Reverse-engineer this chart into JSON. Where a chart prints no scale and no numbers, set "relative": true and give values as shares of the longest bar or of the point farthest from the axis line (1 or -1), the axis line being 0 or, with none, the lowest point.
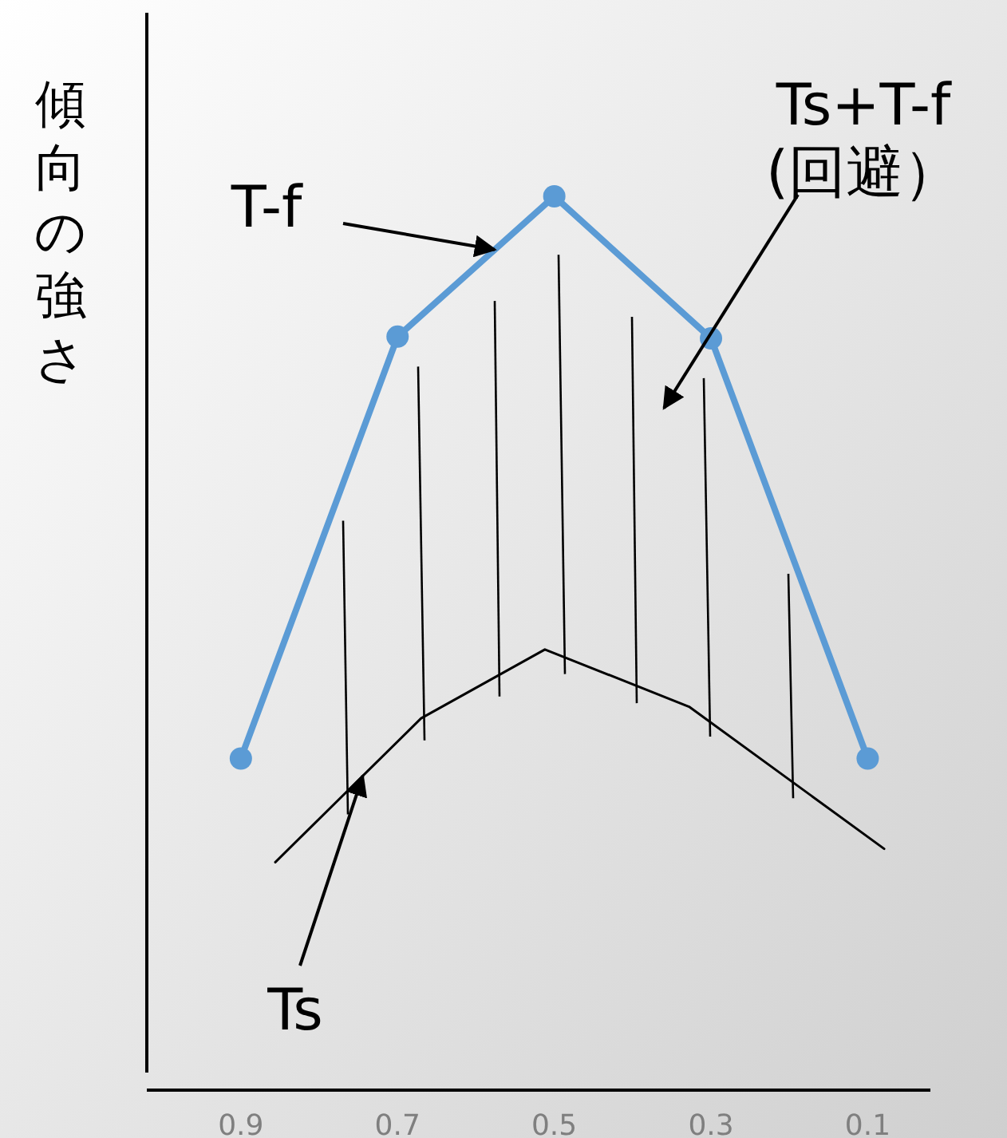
{
  "chart_data": {
    "type": "line",
    "ylabel": "傾向の強さ",
    "relative": true,
    "xlim": [
      1.02,
      0.02
    ],
    "xticks": [
      0.9,
      0.7,
      0.5,
      0.3,
      0.1
    ],
    "marker": "circle",
    "series": [
      {
        "color": "#5b9bd5",
        "x": [
          0.9,
          0.7,
          0.5,
          0.3,
          0.1
        ],
        "values": [
          0.371,
          0.843,
          1,
          0.841,
          0.371
        ]
      },
      {
        "color": "#000000",
        "marker": "none",
        "x": [
          0.856,
          0.67,
          0.512,
          0.328,
          0.079
        ],
        "values": [
          0.255,
          0.416,
          0.493,
          0.429,
          0.27
        ]
      }
    ],
    "annotations": [
      "T-f",
      "Ts+T-f\n(回避）",
      "Ts"
    ]
  }
}
